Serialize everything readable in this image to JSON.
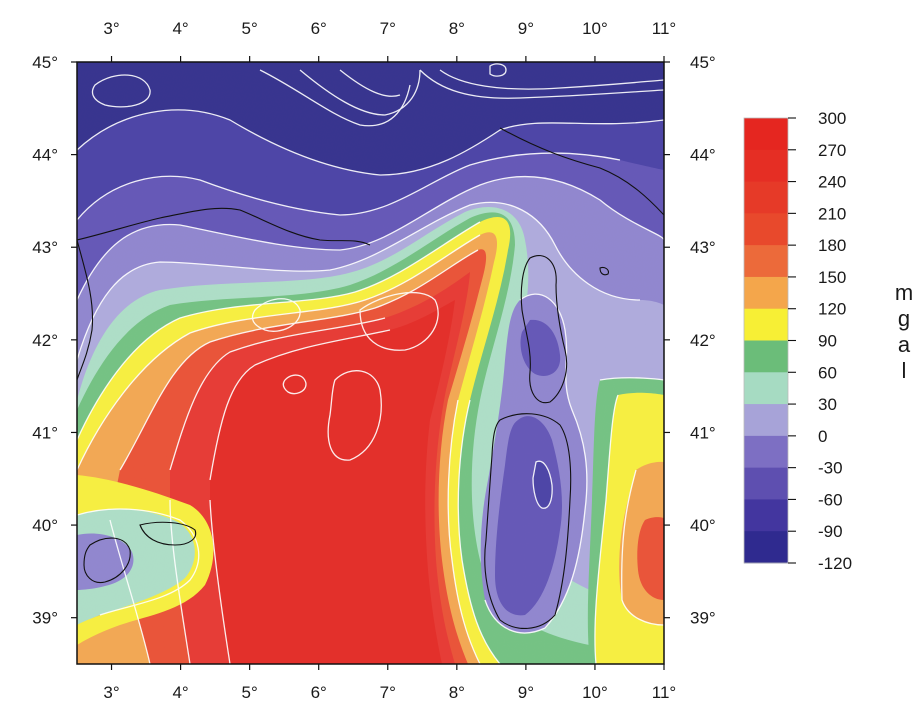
{
  "map": {
    "lon_ticks": [
      "3°",
      "4°",
      "5°",
      "6°",
      "7°",
      "8°",
      "9°",
      "10°",
      "11°"
    ],
    "lat_ticks": [
      "45°",
      "44°",
      "43°",
      "42°",
      "41°",
      "40°",
      "39°"
    ]
  },
  "colorbar": {
    "unit_label": "m g a l",
    "levels": [
      {
        "label": "300",
        "color": "#e52620"
      },
      {
        "label": "270",
        "color": "#e52e24"
      },
      {
        "label": "240",
        "color": "#e63a28"
      },
      {
        "label": "210",
        "color": "#e8492c"
      },
      {
        "label": "180",
        "color": "#ec6a3a"
      },
      {
        "label": "150",
        "color": "#f4a64b"
      },
      {
        "label": "120",
        "color": "#f7ef35"
      },
      {
        "label": "90",
        "color": "#6bbd79"
      },
      {
        "label": "60",
        "color": "#a6dbc2"
      },
      {
        "label": "30",
        "color": "#a7a3d8"
      },
      {
        "label": "0",
        "color": "#7d6fc3"
      },
      {
        "label": "-30",
        "color": "#5e4fb0"
      },
      {
        "label": "-60",
        "color": "#43369f"
      },
      {
        "label": "-90",
        "color": "#2f2a8f"
      },
      {
        "label": "-120",
        "color": "#202080"
      }
    ]
  }
}
